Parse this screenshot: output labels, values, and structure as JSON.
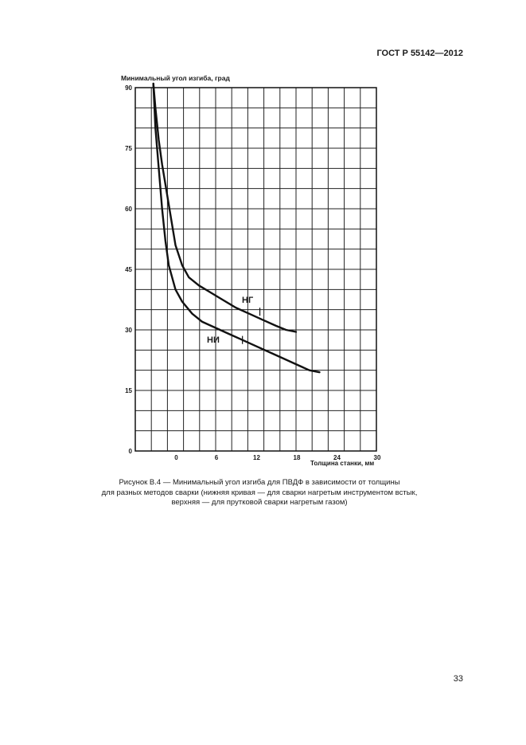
{
  "header": {
    "standard": "ГОСТ Р 55142—2012"
  },
  "caption": {
    "lines": [
      "Рисунок В.4 — Минимальный угол изгиба для ПВДФ в зависимости от толщины",
      "для разных методов сварки (нижняя кривая — для сварки нагретым инструментом встык,",
      "верхняя — для прутковой сварки нагретым газом)"
    ]
  },
  "page_number": "33",
  "chart_data": {
    "type": "line",
    "ylabel": "Минимальный угол изгиба, град",
    "xlabel": "Толщина станки, мм",
    "xlim": [
      -6,
      30
    ],
    "ylim": [
      0,
      90
    ],
    "xticks": [
      0,
      6,
      12,
      18,
      24,
      30
    ],
    "xtick_labels": [
      "0",
      "6",
      "12",
      "18",
      "24",
      "30"
    ],
    "yticks": [
      0,
      15,
      30,
      45,
      60,
      75,
      90
    ],
    "grid": true,
    "series": [
      {
        "name": "НГ",
        "x": [
          -3.3,
          -3.0,
          -2.5,
          -2.0,
          -1.5,
          -1.0,
          0.0,
          1.0,
          2.0,
          3.5,
          5.0,
          7.0,
          9.0,
          11.0,
          13.0,
          15.0,
          16.5,
          18.0
        ],
        "y": [
          91,
          85,
          77,
          71,
          66,
          61,
          51,
          46,
          43,
          41,
          39.5,
          37.5,
          35.5,
          34,
          32.5,
          31,
          30,
          29.5
        ]
      },
      {
        "name": "НИ",
        "x": [
          -3.3,
          -3.0,
          -2.5,
          -2.0,
          -1.5,
          -1.0,
          0.0,
          1.0,
          2.5,
          4.0,
          6.0,
          8.0,
          10.0,
          12.0,
          14.0,
          16.0,
          18.0,
          20.0,
          21.5
        ],
        "y": [
          91,
          80,
          70,
          60,
          52,
          46,
          40,
          37,
          34,
          32,
          30.5,
          29,
          27.5,
          26,
          24.5,
          23,
          21.5,
          20,
          19.5
        ]
      }
    ]
  }
}
